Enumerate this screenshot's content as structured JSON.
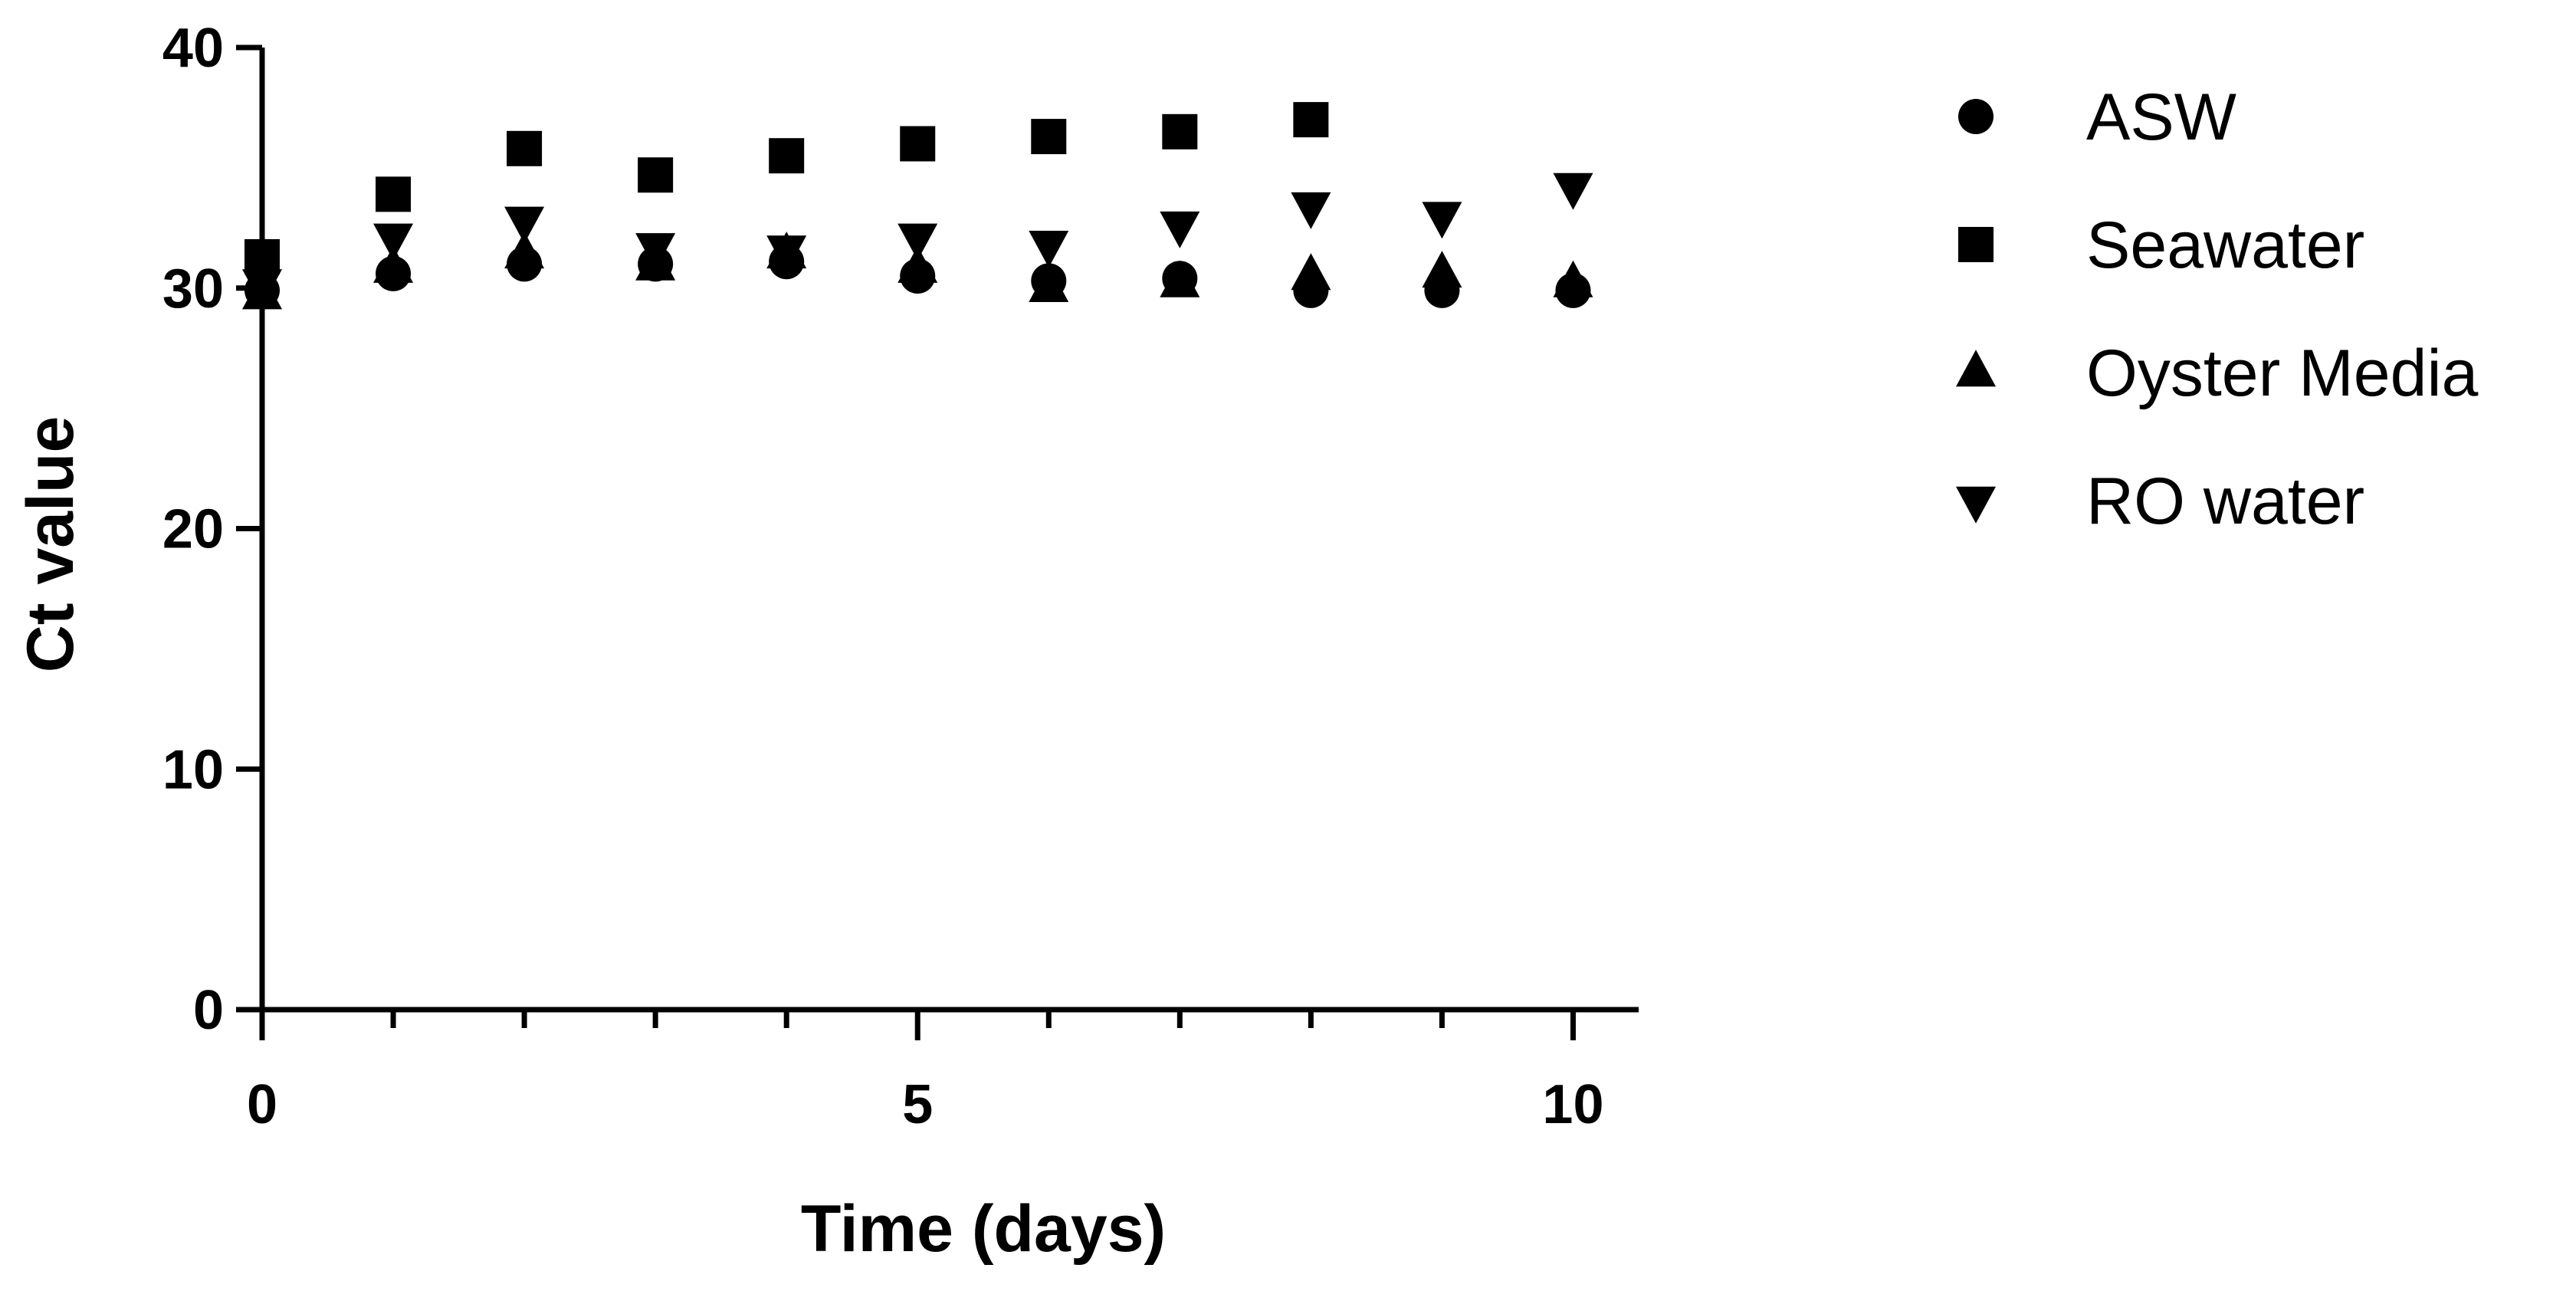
{
  "chart_data": {
    "type": "scatter",
    "title": "",
    "xlabel": "Time (days)",
    "ylabel": "Ct value",
    "xlim": [
      0,
      10.5
    ],
    "ylim": [
      0,
      40
    ],
    "xticks_major": [
      0,
      5,
      10
    ],
    "xticks_minor": [
      1,
      2,
      3,
      4,
      6,
      7,
      8,
      9
    ],
    "yticks": [
      0,
      10,
      20,
      30,
      40
    ],
    "grid": false,
    "legend_position": "right",
    "series": [
      {
        "name": "ASW",
        "marker": "circle",
        "x": [
          0,
          1,
          2,
          3,
          4,
          5,
          6,
          7,
          8,
          9,
          10
        ],
        "y": [
          29.9,
          30.6,
          31.0,
          31.0,
          31.1,
          30.5,
          30.3,
          30.4,
          29.9,
          29.9,
          29.9
        ]
      },
      {
        "name": "Seawater",
        "marker": "square",
        "x": [
          0,
          1,
          2,
          3,
          4,
          5,
          6,
          7,
          8
        ],
        "y": [
          31.3,
          33.9,
          35.8,
          34.7,
          35.5,
          36.0,
          36.3,
          36.5,
          37.0
        ]
      },
      {
        "name": "Oyster Media",
        "marker": "triangle-up",
        "x": [
          0,
          1,
          2,
          3,
          4,
          5,
          6,
          7,
          8,
          9,
          10
        ],
        "y": [
          29.7,
          30.8,
          31.4,
          30.9,
          31.4,
          30.8,
          30.0,
          30.2,
          30.5,
          30.6,
          30.2
        ]
      },
      {
        "name": "RO water",
        "marker": "triangle-down",
        "x": [
          0,
          1,
          2,
          3,
          4,
          5,
          6,
          7,
          8,
          9,
          10
        ],
        "y": [
          30.2,
          32.1,
          32.8,
          31.7,
          31.6,
          32.1,
          31.8,
          32.6,
          33.4,
          33.0,
          34.2
        ]
      }
    ]
  }
}
